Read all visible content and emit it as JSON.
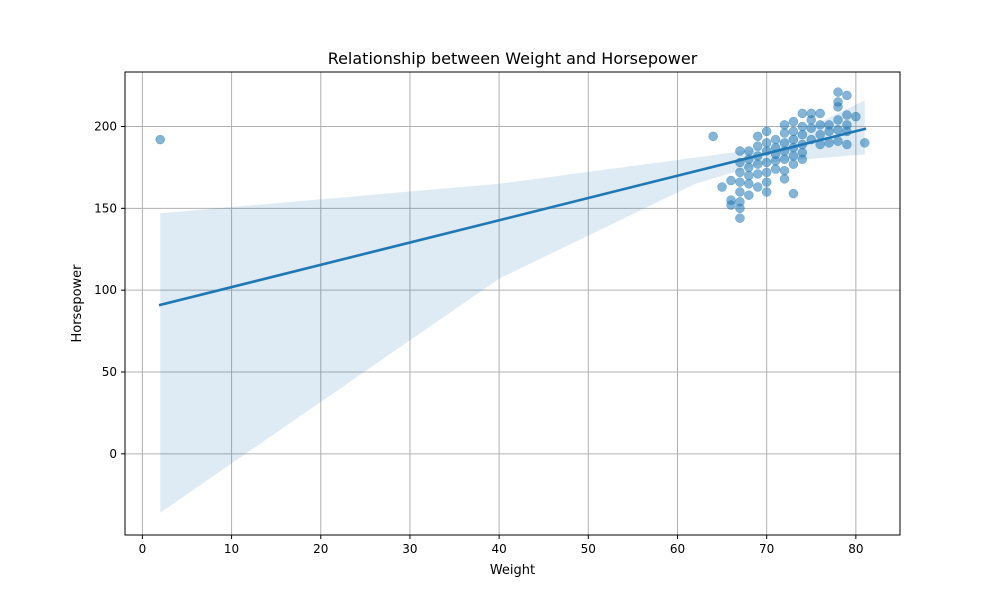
{
  "chart_data": {
    "type": "scatter",
    "title": "Relationship between Weight and Horsepower",
    "xlabel": "Weight",
    "ylabel": "Horsepower",
    "xlim": [
      -1.95,
      84.95
    ],
    "ylim": [
      -49.6,
      233.3
    ],
    "xticks": [
      0,
      10,
      20,
      30,
      40,
      50,
      60,
      70,
      80
    ],
    "yticks": [
      0,
      50,
      100,
      150,
      200
    ],
    "grid": true,
    "point_color": "#1f77b4",
    "ci_color": "#1f77b4",
    "series": [
      {
        "kind": "points",
        "points": [
          [
            2,
            192
          ],
          [
            64,
            194
          ],
          [
            81,
            190
          ],
          [
            78,
            221
          ],
          [
            79,
            219
          ],
          [
            80,
            206
          ],
          [
            65,
            163
          ],
          [
            66,
            167
          ],
          [
            66,
            155
          ],
          [
            66,
            152
          ],
          [
            67,
            185
          ],
          [
            67,
            178
          ],
          [
            67,
            172
          ],
          [
            67,
            166
          ],
          [
            67,
            160
          ],
          [
            67,
            154
          ],
          [
            67,
            150
          ],
          [
            67,
            144
          ],
          [
            68,
            185
          ],
          [
            68,
            180
          ],
          [
            68,
            175
          ],
          [
            68,
            170
          ],
          [
            68,
            165
          ],
          [
            68,
            158
          ],
          [
            69,
            194
          ],
          [
            69,
            188
          ],
          [
            69,
            182
          ],
          [
            69,
            177
          ],
          [
            69,
            171
          ],
          [
            69,
            163
          ],
          [
            70,
            197
          ],
          [
            70,
            190
          ],
          [
            70,
            185
          ],
          [
            70,
            178
          ],
          [
            70,
            172
          ],
          [
            70,
            166
          ],
          [
            70,
            160
          ],
          [
            71,
            192
          ],
          [
            71,
            187
          ],
          [
            71,
            183
          ],
          [
            71,
            179
          ],
          [
            71,
            174
          ],
          [
            72,
            201
          ],
          [
            72,
            196
          ],
          [
            72,
            190
          ],
          [
            72,
            185
          ],
          [
            72,
            180
          ],
          [
            72,
            173
          ],
          [
            72,
            168
          ],
          [
            73,
            203
          ],
          [
            73,
            197
          ],
          [
            73,
            192
          ],
          [
            73,
            187
          ],
          [
            73,
            182
          ],
          [
            73,
            177
          ],
          [
            73,
            159
          ],
          [
            74,
            208
          ],
          [
            74,
            200
          ],
          [
            74,
            195
          ],
          [
            74,
            189
          ],
          [
            74,
            184
          ],
          [
            74,
            180
          ],
          [
            75,
            208
          ],
          [
            75,
            204
          ],
          [
            75,
            199
          ],
          [
            75,
            192
          ],
          [
            76,
            208
          ],
          [
            76,
            201
          ],
          [
            76,
            195
          ],
          [
            76,
            189
          ],
          [
            77,
            201
          ],
          [
            77,
            197
          ],
          [
            77,
            190
          ],
          [
            78,
            215
          ],
          [
            78,
            212
          ],
          [
            78,
            204
          ],
          [
            78,
            198
          ],
          [
            78,
            191
          ],
          [
            79,
            207
          ],
          [
            79,
            201
          ],
          [
            79,
            197
          ],
          [
            79,
            189
          ]
        ]
      },
      {
        "kind": "regression",
        "line": [
          [
            2,
            91
          ],
          [
            81,
            198.5
          ]
        ],
        "ci_upper": [
          [
            2,
            147
          ],
          [
            40,
            165
          ],
          [
            62,
            181
          ],
          [
            70,
            187
          ],
          [
            81,
            216
          ]
        ],
        "ci_lower": [
          [
            2,
            -36
          ],
          [
            40,
            107
          ],
          [
            62,
            165
          ],
          [
            70,
            178
          ],
          [
            81,
            183
          ]
        ]
      }
    ]
  }
}
